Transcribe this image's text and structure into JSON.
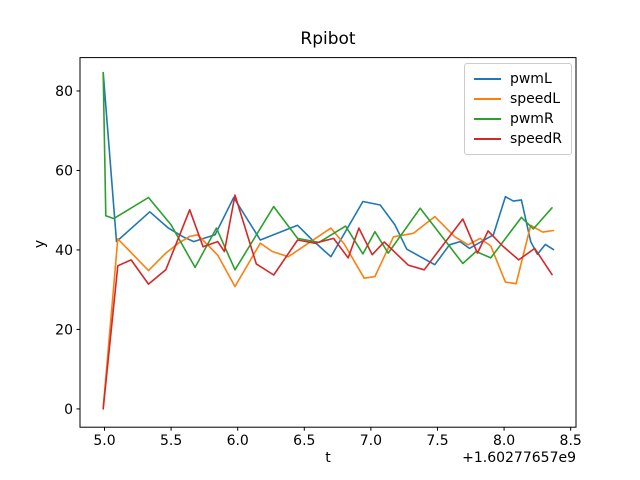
{
  "figure": {
    "background": "#ffffff",
    "axis_color": "#000000",
    "tick_label_color": "#000000"
  },
  "chart_data": {
    "type": "line",
    "title": "Rpibot",
    "xlabel": "t",
    "ylabel": "y",
    "x_axis_offset_label": "+1.60277657e9",
    "xlim": [
      4.816,
      8.54
    ],
    "ylim": [
      -4.6,
      88.4
    ],
    "xticks": [
      5.0,
      5.5,
      6.0,
      6.5,
      7.0,
      7.5,
      8.0,
      8.5
    ],
    "xtick_labels": [
      "5.0",
      "5.5",
      "6.0",
      "6.5",
      "7.0",
      "7.5",
      "8.0",
      "8.5"
    ],
    "yticks": [
      0,
      20,
      40,
      60,
      80
    ],
    "ytick_labels": [
      "0",
      "20",
      "40",
      "60",
      "80"
    ],
    "grid": false,
    "legend": {
      "position": "upper right",
      "entries": [
        "pwmL",
        "speedL",
        "pwmR",
        "speedR"
      ]
    },
    "series": [
      {
        "name": "pwmL",
        "color": "#1f77b4",
        "points": [
          [
            4.99,
            84.6
          ],
          [
            5.09,
            42.1
          ],
          [
            5.34,
            49.6
          ],
          [
            5.48,
            45.5
          ],
          [
            5.59,
            43.3
          ],
          [
            5.67,
            42.1
          ],
          [
            5.83,
            43.8
          ],
          [
            5.97,
            53.2
          ],
          [
            6.17,
            42.5
          ],
          [
            6.45,
            46.2
          ],
          [
            6.56,
            42.5
          ],
          [
            6.7,
            38.3
          ],
          [
            6.94,
            52.2
          ],
          [
            7.07,
            51.3
          ],
          [
            7.18,
            46.3
          ],
          [
            7.27,
            40.2
          ],
          [
            7.48,
            36.3
          ],
          [
            7.59,
            41.3
          ],
          [
            7.67,
            42.1
          ],
          [
            7.74,
            40.4
          ],
          [
            7.92,
            43.8
          ],
          [
            8.01,
            53.4
          ],
          [
            8.07,
            52.3
          ],
          [
            8.13,
            52.6
          ],
          [
            8.2,
            42.1
          ],
          [
            8.25,
            38.9
          ],
          [
            8.31,
            41.4
          ],
          [
            8.37,
            40.1
          ]
        ]
      },
      {
        "name": "speedL",
        "color": "#ff7f0e",
        "points": [
          [
            4.99,
            0.3
          ],
          [
            5.1,
            42.8
          ],
          [
            5.33,
            34.8
          ],
          [
            5.46,
            39.2
          ],
          [
            5.56,
            41.8
          ],
          [
            5.64,
            43.4
          ],
          [
            5.7,
            43.8
          ],
          [
            5.85,
            38.7
          ],
          [
            5.98,
            30.8
          ],
          [
            6.17,
            41.7
          ],
          [
            6.26,
            39.6
          ],
          [
            6.38,
            38.3
          ],
          [
            6.7,
            45.5
          ],
          [
            6.8,
            41.5
          ],
          [
            6.95,
            32.9
          ],
          [
            7.03,
            33.3
          ],
          [
            7.17,
            43.3
          ],
          [
            7.32,
            44.2
          ],
          [
            7.48,
            48.4
          ],
          [
            7.63,
            43.3
          ],
          [
            7.73,
            41.3
          ],
          [
            7.82,
            42.9
          ],
          [
            7.9,
            41.0
          ],
          [
            8.01,
            31.9
          ],
          [
            8.09,
            31.5
          ],
          [
            8.2,
            46.2
          ],
          [
            8.29,
            44.5
          ],
          [
            8.37,
            44.9
          ]
        ]
      },
      {
        "name": "pwmR",
        "color": "#2ca02c",
        "points": [
          [
            4.99,
            84.6
          ],
          [
            5.01,
            48.6
          ],
          [
            5.07,
            47.9
          ],
          [
            5.33,
            53.2
          ],
          [
            5.5,
            46.3
          ],
          [
            5.68,
            35.6
          ],
          [
            5.84,
            45.5
          ],
          [
            5.98,
            35.0
          ],
          [
            6.27,
            50.9
          ],
          [
            6.45,
            42.9
          ],
          [
            6.61,
            41.9
          ],
          [
            6.81,
            46.0
          ],
          [
            6.94,
            39.0
          ],
          [
            7.03,
            44.6
          ],
          [
            7.13,
            39.2
          ],
          [
            7.37,
            50.5
          ],
          [
            7.69,
            36.6
          ],
          [
            7.79,
            39.6
          ],
          [
            7.9,
            38.0
          ],
          [
            8.13,
            48.2
          ],
          [
            8.22,
            45.3
          ],
          [
            8.36,
            50.6
          ]
        ]
      },
      {
        "name": "speedR",
        "color": "#d62728",
        "points": [
          [
            4.99,
            0.0
          ],
          [
            5.1,
            36.0
          ],
          [
            5.2,
            37.5
          ],
          [
            5.33,
            31.4
          ],
          [
            5.46,
            35.0
          ],
          [
            5.64,
            50.1
          ],
          [
            5.74,
            40.8
          ],
          [
            5.85,
            42.1
          ],
          [
            5.9,
            39.6
          ],
          [
            5.98,
            53.8
          ],
          [
            6.14,
            36.5
          ],
          [
            6.27,
            33.7
          ],
          [
            6.45,
            42.5
          ],
          [
            6.58,
            41.7
          ],
          [
            6.72,
            42.9
          ],
          [
            6.83,
            38.0
          ],
          [
            6.91,
            45.5
          ],
          [
            7.01,
            38.8
          ],
          [
            7.1,
            42.0
          ],
          [
            7.28,
            36.2
          ],
          [
            7.4,
            35.0
          ],
          [
            7.69,
            47.8
          ],
          [
            7.8,
            39.2
          ],
          [
            7.88,
            44.8
          ],
          [
            7.99,
            41.0
          ],
          [
            8.11,
            37.5
          ],
          [
            8.23,
            40.4
          ],
          [
            8.36,
            33.8
          ]
        ]
      }
    ]
  }
}
